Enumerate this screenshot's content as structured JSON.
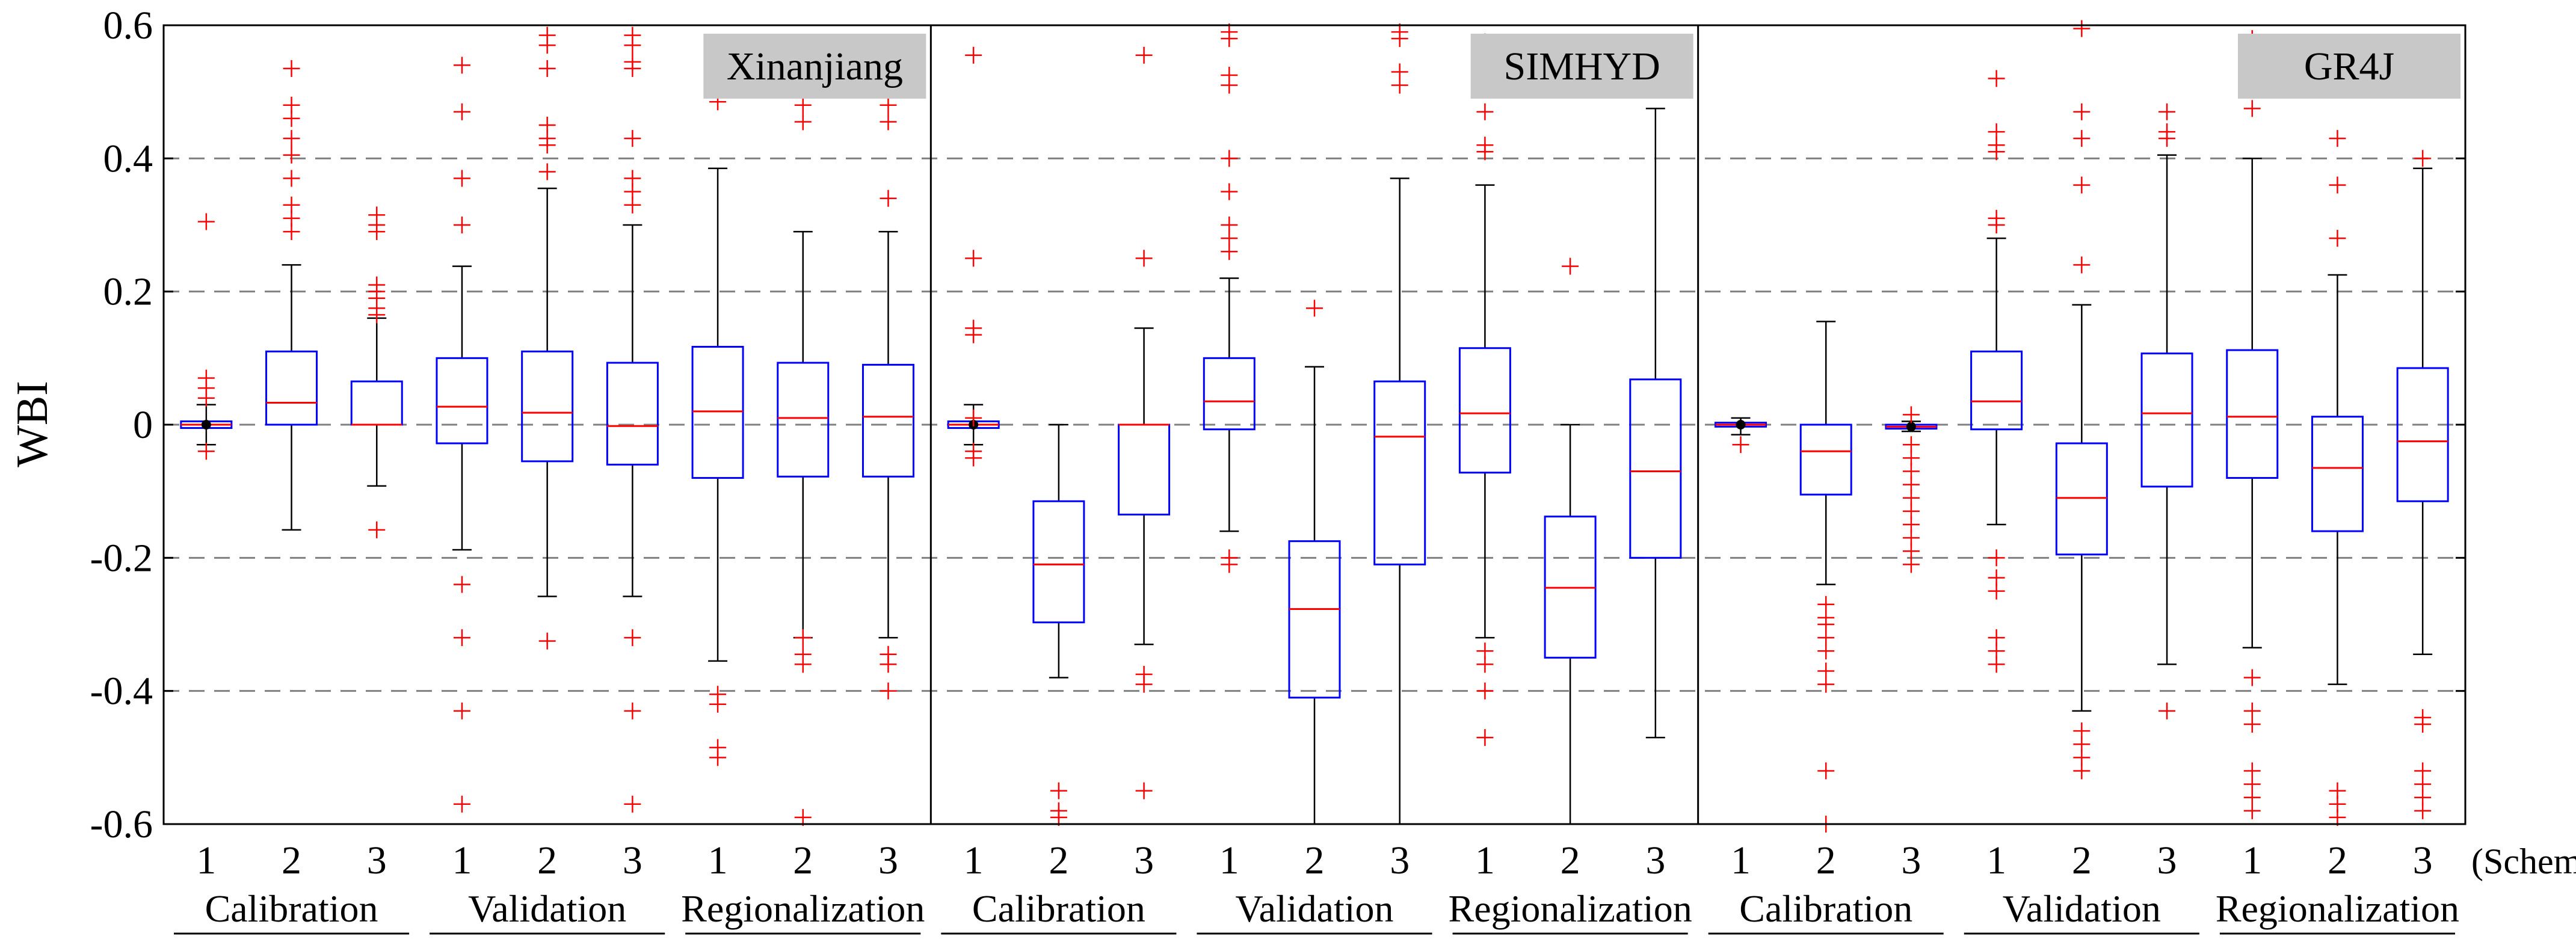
{
  "chart_data": {
    "type": "box",
    "ylabel": "WBI",
    "ylim": [
      -0.6,
      0.6
    ],
    "yticks": [
      0.6,
      0.4,
      0.2,
      0,
      -0.2,
      -0.4,
      -0.6
    ],
    "ytick_labels": [
      "0.6",
      "0.4",
      "0.2",
      "0",
      "-0.2",
      "-0.4",
      "-0.6"
    ],
    "gridlines": [
      0.4,
      0.2,
      -0.2,
      -0.4,
      0
    ],
    "scheme_word": "(Scheme)",
    "panels": [
      {
        "title": "Xinanjiang",
        "groups": [
          {
            "label": "Calibration",
            "schemes": [
              {
                "scheme": "1",
                "median": 0.0,
                "q1": -0.005,
                "q3": 0.005,
                "wlow": -0.03,
                "whigh": 0.03,
                "outliers": [
                  0.305,
                  0.07,
                  0.055,
                  0.04,
                  -0.04
                ]
              },
              {
                "scheme": "2",
                "median": 0.033,
                "q1": 0.0,
                "q3": 0.11,
                "wlow": -0.158,
                "whigh": 0.24,
                "outliers": [
                  0.535,
                  0.48,
                  0.46,
                  0.43,
                  0.405,
                  0.37,
                  0.33,
                  0.31,
                  0.29
                ]
              },
              {
                "scheme": "3",
                "median": 0.0,
                "q1": 0.0,
                "q3": 0.065,
                "wlow": -0.092,
                "whigh": 0.16,
                "outliers": [
                  0.315,
                  0.3,
                  0.29,
                  0.21,
                  0.2,
                  0.19,
                  0.175,
                  0.165,
                  -0.158
                ]
              }
            ]
          },
          {
            "label": "Validation",
            "schemes": [
              {
                "scheme": "1",
                "median": 0.027,
                "q1": -0.028,
                "q3": 0.1,
                "wlow": -0.188,
                "whigh": 0.238,
                "outliers": [
                  0.54,
                  0.47,
                  0.37,
                  0.3,
                  -0.24,
                  -0.32,
                  -0.43,
                  -0.57
                ]
              },
              {
                "scheme": "2",
                "median": 0.018,
                "q1": -0.055,
                "q3": 0.11,
                "wlow": -0.258,
                "whigh": 0.355,
                "outliers": [
                  0.585,
                  0.57,
                  0.535,
                  0.45,
                  0.43,
                  0.42,
                  0.38,
                  -0.325
                ]
              },
              {
                "scheme": "3",
                "median": -0.002,
                "q1": -0.06,
                "q3": 0.093,
                "wlow": -0.258,
                "whigh": 0.3,
                "outliers": [
                  0.585,
                  0.57,
                  0.545,
                  0.535,
                  0.43,
                  0.37,
                  0.35,
                  0.33,
                  -0.32,
                  -0.43,
                  -0.57
                ]
              }
            ]
          },
          {
            "label": "Regionalization",
            "schemes": [
              {
                "scheme": "1",
                "median": 0.02,
                "q1": -0.08,
                "q3": 0.117,
                "wlow": -0.355,
                "whigh": 0.385,
                "outliers": [
                  0.485,
                  -0.405,
                  -0.42,
                  -0.485,
                  -0.5
                ]
              },
              {
                "scheme": "2",
                "median": 0.01,
                "q1": -0.078,
                "q3": 0.093,
                "wlow": -0.32,
                "whigh": 0.29,
                "outliers": [
                  0.48,
                  0.455,
                  -0.32,
                  -0.345,
                  -0.36,
                  -0.59
                ]
              },
              {
                "scheme": "3",
                "median": 0.012,
                "q1": -0.078,
                "q3": 0.09,
                "wlow": -0.32,
                "whigh": 0.29,
                "outliers": [
                  0.48,
                  0.455,
                  0.34,
                  -0.345,
                  -0.36,
                  -0.4
                ]
              }
            ]
          }
        ]
      },
      {
        "title": "SIMHYD",
        "groups": [
          {
            "label": "Calibration",
            "schemes": [
              {
                "scheme": "1",
                "median": 0.0,
                "q1": -0.005,
                "q3": 0.005,
                "wlow": -0.03,
                "whigh": 0.03,
                "outliers": [
                  0.555,
                  0.25,
                  0.145,
                  0.135,
                  0.01,
                  -0.04,
                  -0.05
                ]
              },
              {
                "scheme": "2",
                "median": -0.21,
                "q1": -0.297,
                "q3": -0.115,
                "wlow": -0.38,
                "whigh": 0.0,
                "outliers": [
                  -0.55,
                  -0.58,
                  -0.59
                ]
              },
              {
                "scheme": "3",
                "median": 0.0,
                "q1": -0.135,
                "q3": 0.0,
                "wlow": -0.33,
                "whigh": 0.145,
                "outliers": [
                  0.555,
                  0.25,
                  -0.375,
                  -0.39,
                  -0.55
                ]
              }
            ]
          },
          {
            "label": "Validation",
            "schemes": [
              {
                "scheme": "1",
                "median": 0.035,
                "q1": -0.007,
                "q3": 0.1,
                "wlow": -0.16,
                "whigh": 0.22,
                "outliers": [
                  0.59,
                  0.58,
                  0.525,
                  0.51,
                  0.4,
                  0.35,
                  0.3,
                  0.28,
                  0.26,
                  -0.2,
                  -0.21
                ]
              },
              {
                "scheme": "2",
                "median": -0.277,
                "q1": -0.41,
                "q3": -0.175,
                "wlow": -0.6,
                "whigh": 0.087,
                "outliers": [
                  0.175
                ]
              },
              {
                "scheme": "3",
                "median": -0.018,
                "q1": -0.21,
                "q3": 0.065,
                "wlow": -0.6,
                "whigh": 0.37,
                "outliers": [
                  0.59,
                  0.58,
                  0.53,
                  0.51
                ]
              }
            ]
          },
          {
            "label": "Regionalization",
            "schemes": [
              {
                "scheme": "1",
                "median": 0.017,
                "q1": -0.072,
                "q3": 0.115,
                "wlow": -0.32,
                "whigh": 0.36,
                "outliers": [
                  0.575,
                  0.47,
                  0.42,
                  0.41,
                  -0.34,
                  -0.36,
                  -0.4,
                  -0.47
                ]
              },
              {
                "scheme": "2",
                "median": -0.245,
                "q1": -0.35,
                "q3": -0.138,
                "wlow": -0.6,
                "whigh": 0.0,
                "outliers": [
                  0.238
                ]
              },
              {
                "scheme": "3",
                "median": -0.07,
                "q1": -0.2,
                "q3": 0.068,
                "wlow": -0.47,
                "whigh": 0.475,
                "outliers": []
              }
            ]
          }
        ]
      },
      {
        "title": "GR4J",
        "groups": [
          {
            "label": "Calibration",
            "schemes": [
              {
                "scheme": "1",
                "median": 0.0,
                "q1": -0.003,
                "q3": 0.003,
                "wlow": -0.015,
                "whigh": 0.01,
                "outliers": [
                  -0.03
                ]
              },
              {
                "scheme": "2",
                "median": -0.04,
                "q1": -0.105,
                "q3": 0.0,
                "wlow": -0.24,
                "whigh": 0.155,
                "outliers": [
                  -0.27,
                  -0.29,
                  -0.3,
                  -0.32,
                  -0.34,
                  -0.37,
                  -0.39,
                  -0.52,
                  -0.6
                ]
              },
              {
                "scheme": "3",
                "median": -0.003,
                "q1": -0.006,
                "q3": 0.0,
                "wlow": -0.01,
                "whigh": 0.005,
                "outliers": [
                  0.015,
                  -0.03,
                  -0.05,
                  -0.07,
                  -0.09,
                  -0.11,
                  -0.13,
                  -0.15,
                  -0.17,
                  -0.19,
                  -0.21
                ]
              }
            ]
          },
          {
            "label": "Validation",
            "schemes": [
              {
                "scheme": "1",
                "median": 0.035,
                "q1": -0.007,
                "q3": 0.11,
                "wlow": -0.15,
                "whigh": 0.28,
                "outliers": [
                  0.52,
                  0.44,
                  0.42,
                  0.41,
                  0.31,
                  0.3,
                  -0.2,
                  -0.23,
                  -0.25,
                  -0.32,
                  -0.34,
                  -0.36
                ]
              },
              {
                "scheme": "2",
                "median": -0.11,
                "q1": -0.195,
                "q3": -0.028,
                "wlow": -0.43,
                "whigh": 0.18,
                "outliers": [
                  0.595,
                  0.47,
                  0.43,
                  0.36,
                  0.24,
                  -0.46,
                  -0.48,
                  -0.5,
                  -0.52
                ]
              },
              {
                "scheme": "3",
                "median": 0.017,
                "q1": -0.093,
                "q3": 0.107,
                "wlow": -0.36,
                "whigh": 0.405,
                "outliers": [
                  0.47,
                  0.44,
                  0.43,
                  -0.43
                ]
              }
            ]
          },
          {
            "label": "Regionalization",
            "schemes": [
              {
                "scheme": "1",
                "median": 0.012,
                "q1": -0.08,
                "q3": 0.112,
                "wlow": -0.335,
                "whigh": 0.4,
                "outliers": [
                  0.58,
                  0.475,
                  -0.38,
                  -0.43,
                  -0.45,
                  -0.52,
                  -0.54,
                  -0.56,
                  -0.58
                ]
              },
              {
                "scheme": "2",
                "median": -0.065,
                "q1": -0.16,
                "q3": 0.012,
                "wlow": -0.39,
                "whigh": 0.225,
                "outliers": [
                  0.43,
                  0.36,
                  0.28,
                  -0.55,
                  -0.57,
                  -0.59
                ]
              },
              {
                "scheme": "3",
                "median": -0.025,
                "q1": -0.115,
                "q3": 0.085,
                "wlow": -0.345,
                "whigh": 0.385,
                "outliers": [
                  0.4,
                  -0.44,
                  -0.45,
                  -0.52,
                  -0.54,
                  -0.56,
                  -0.58
                ]
              }
            ]
          }
        ]
      }
    ]
  },
  "colors": {
    "box": "#0000ff",
    "median": "#ff0000",
    "outlier": "#ff0000",
    "whisker": "#000000",
    "grid": "#808080",
    "title_bg": "#c8c8c8"
  }
}
